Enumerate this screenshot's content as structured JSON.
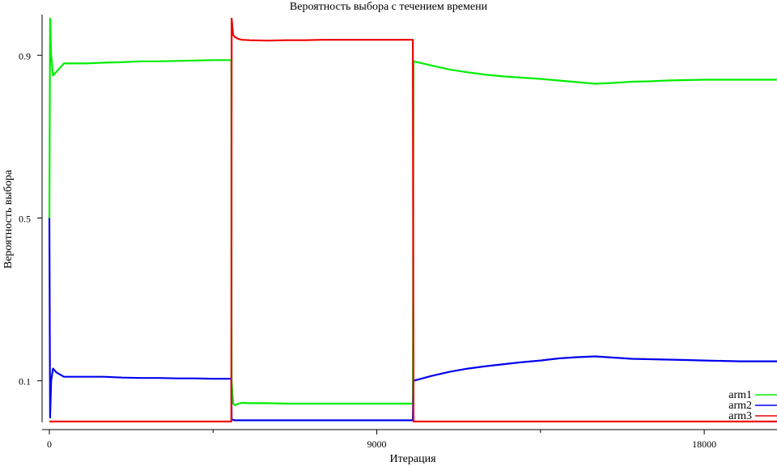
{
  "chart_data": {
    "type": "line",
    "title": "Вероятность выбора с течением времени",
    "xlabel": "Итерация",
    "ylabel": "Вероятность выбора",
    "xlim": [
      0,
      20000
    ],
    "ylim": [
      0.0,
      1.0
    ],
    "x_ticks": [
      0,
      9000,
      18000
    ],
    "x_minor_ticks": [
      4500,
      13500
    ],
    "y_ticks": [
      0.1,
      0.5,
      0.9
    ],
    "grid": false,
    "legend_position": "bottom-right",
    "x": [
      0,
      20,
      50,
      100,
      200,
      400,
      700,
      1000,
      1500,
      2000,
      2500,
      3000,
      3500,
      4000,
      4500,
      5000,
      5010,
      5050,
      5100,
      5200,
      5300,
      5500,
      6000,
      6500,
      7000,
      7500,
      8000,
      8500,
      9000,
      9500,
      9990,
      10010,
      10500,
      11000,
      11500,
      12000,
      12500,
      13000,
      13500,
      14000,
      14500,
      15000,
      15500,
      16000,
      16500,
      17000,
      17500,
      18000,
      18500,
      19000,
      19500,
      20000
    ],
    "series": [
      {
        "name": "arm1",
        "color": "#00ee00",
        "values": [
          0.5,
          0.99,
          0.9,
          0.85,
          0.86,
          0.88,
          0.88,
          0.88,
          0.882,
          0.883,
          0.885,
          0.885,
          0.886,
          0.887,
          0.888,
          0.888,
          0.1,
          0.045,
          0.04,
          0.044,
          0.046,
          0.045,
          0.045,
          0.044,
          0.044,
          0.044,
          0.044,
          0.044,
          0.044,
          0.044,
          0.044,
          0.885,
          0.875,
          0.865,
          0.858,
          0.852,
          0.848,
          0.845,
          0.842,
          0.838,
          0.834,
          0.83,
          0.832,
          0.835,
          0.836,
          0.838,
          0.839,
          0.84,
          0.84,
          0.84,
          0.84,
          0.84
        ]
      },
      {
        "name": "arm2",
        "color": "#0000ee",
        "values": [
          0.5,
          0.01,
          0.1,
          0.13,
          0.12,
          0.11,
          0.11,
          0.11,
          0.11,
          0.108,
          0.107,
          0.107,
          0.106,
          0.106,
          0.105,
          0.105,
          0.005,
          0.004,
          0.003,
          0.003,
          0.003,
          0.003,
          0.003,
          0.003,
          0.003,
          0.003,
          0.003,
          0.003,
          0.003,
          0.003,
          0.003,
          0.1,
          0.112,
          0.122,
          0.13,
          0.136,
          0.141,
          0.146,
          0.15,
          0.155,
          0.158,
          0.16,
          0.157,
          0.154,
          0.153,
          0.152,
          0.151,
          0.15,
          0.149,
          0.148,
          0.148,
          0.148
        ]
      },
      {
        "name": "arm3",
        "color": "#ee0000",
        "values": [
          0.0,
          0.0,
          0.0,
          0.0,
          0.0,
          0.0,
          0.0,
          0.0,
          0.0,
          0.0,
          0.0,
          0.0,
          0.0,
          0.0,
          0.0,
          0.0,
          0.99,
          0.95,
          0.945,
          0.94,
          0.938,
          0.937,
          0.936,
          0.937,
          0.937,
          0.938,
          0.938,
          0.938,
          0.938,
          0.938,
          0.938,
          0.0,
          0.0,
          0.0,
          0.0,
          0.0,
          0.0,
          0.0,
          0.0,
          0.0,
          0.0,
          0.0,
          0.0,
          0.0,
          0.0,
          0.0,
          0.0,
          0.0,
          0.0,
          0.0,
          0.0,
          0.0
        ]
      }
    ]
  }
}
